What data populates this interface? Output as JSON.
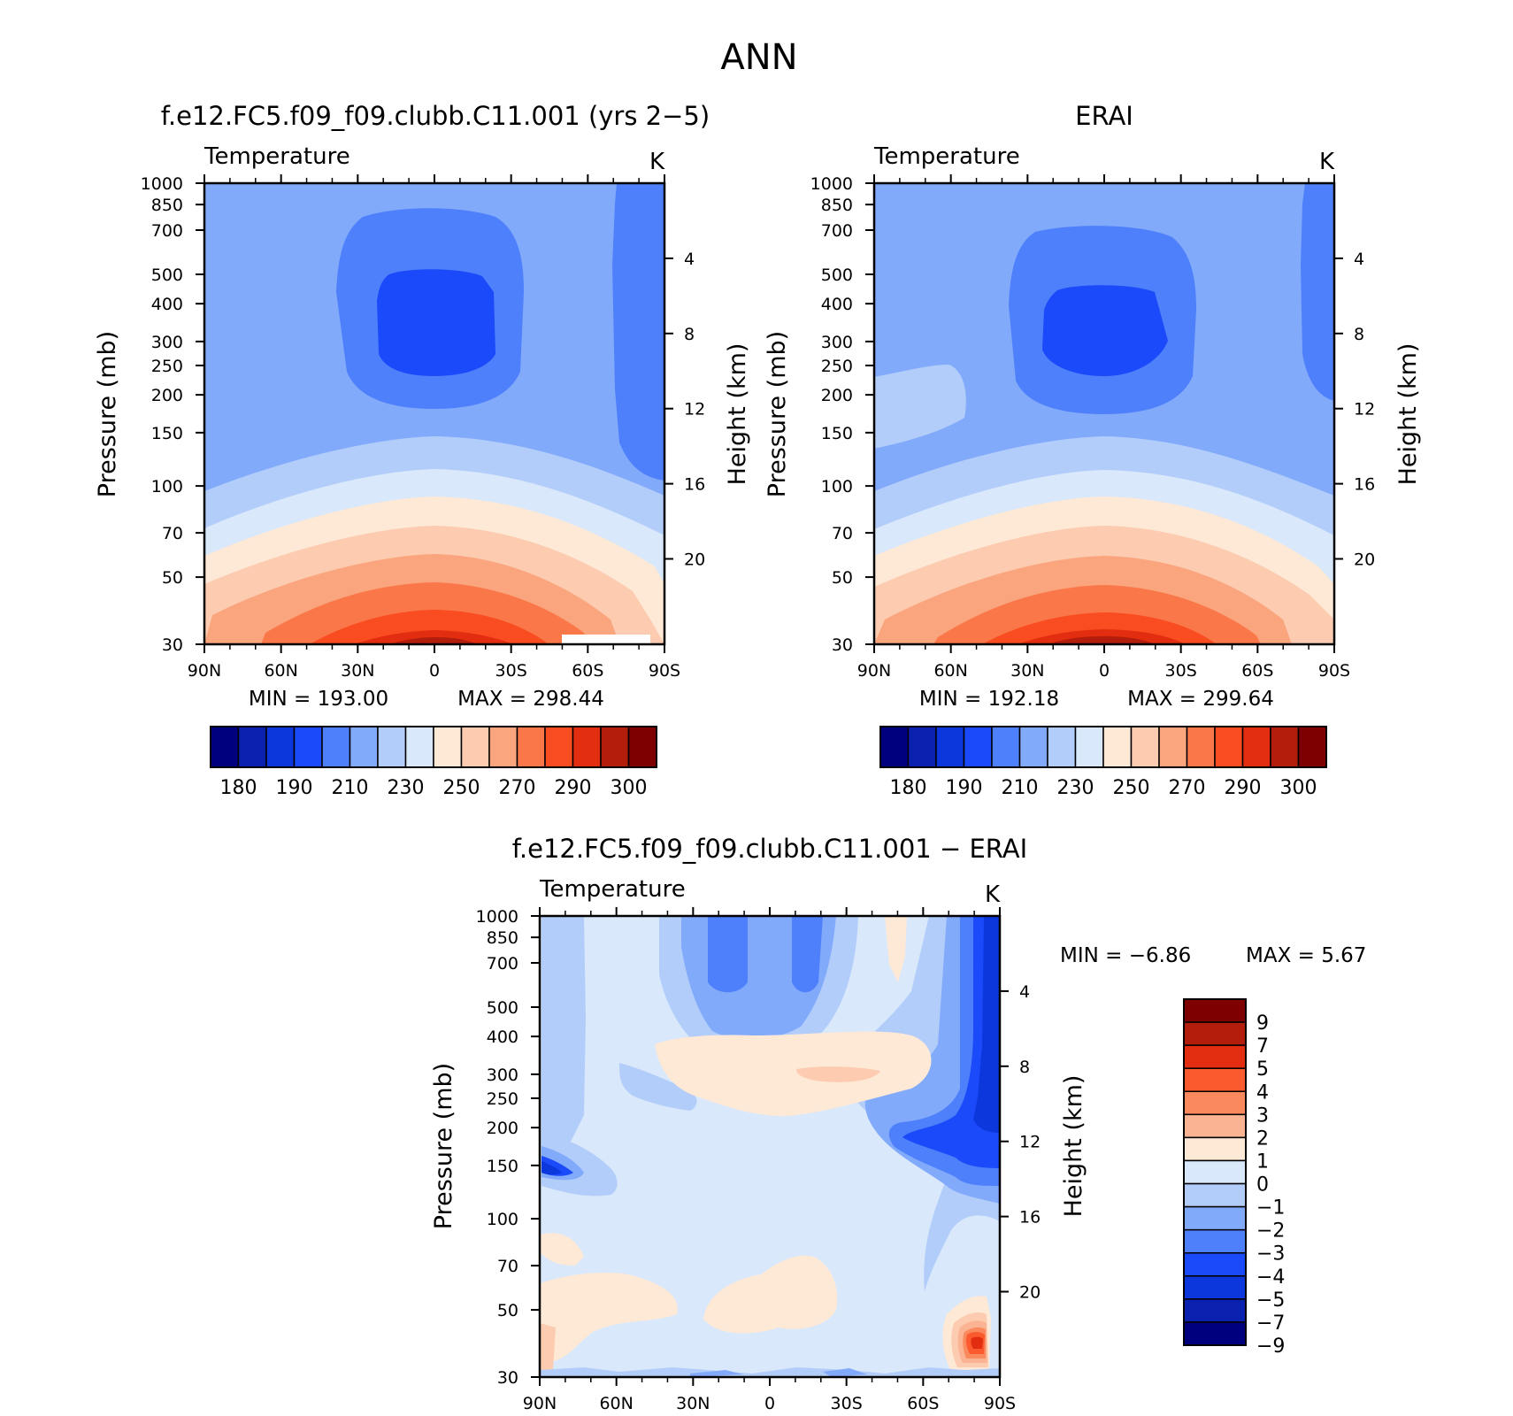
{
  "figure": {
    "title": "ANN"
  },
  "chart_data": [
    {
      "type": "heatmap",
      "id": "model",
      "title": "f.e12.FC5.f09_f09.clubb.C11.001 (yrs 2−5)",
      "variable_label": "Temperature",
      "units": "K",
      "xlabel": "",
      "ylabel": "Pressure (mb)",
      "ylabel_right": "Height (km)",
      "x_ticks": [
        "90N",
        "60N",
        "30N",
        "0",
        "30S",
        "60S",
        "90S"
      ],
      "y_ticks": [
        "30",
        "50",
        "70",
        "100",
        "150",
        "200",
        "250",
        "300",
        "400",
        "500",
        "700",
        "850",
        "1000"
      ],
      "y_ticks_right": [
        "20",
        "16",
        "12",
        "8",
        "4"
      ],
      "y_scale": "log",
      "ylim": [
        1000,
        30
      ],
      "xlim": [
        "90N",
        "90S"
      ],
      "min_text": "MIN = 193.00",
      "max_text": "MAX = 298.44",
      "min": 193.0,
      "max": 298.44,
      "colorbar_orientation": "horizontal",
      "colorbar_labels": [
        "180",
        "190",
        "210",
        "230",
        "250",
        "270",
        "290",
        "300"
      ],
      "colorbar_levels": [
        180,
        190,
        200,
        210,
        220,
        230,
        240,
        250,
        260,
        270,
        280,
        290,
        295,
        300
      ],
      "colorbar_colors": [
        "#00007f",
        "#0a21b0",
        "#0b37dd",
        "#1a4af9",
        "#4f80fb",
        "#82aafb",
        "#b3cdfa",
        "#d9e8fb",
        "#fde9d6",
        "#fccbb0",
        "#faa57d",
        "#fa774a",
        "#f94c20",
        "#e22d10",
        "#b31e0c",
        "#7e0000"
      ]
    },
    {
      "type": "heatmap",
      "id": "obs",
      "title": "ERAI",
      "variable_label": "Temperature",
      "units": "K",
      "xlabel": "",
      "ylabel": "Pressure (mb)",
      "ylabel_right": "Height (km)",
      "x_ticks": [
        "90N",
        "60N",
        "30N",
        "0",
        "30S",
        "60S",
        "90S"
      ],
      "y_ticks": [
        "30",
        "50",
        "70",
        "100",
        "150",
        "200",
        "250",
        "300",
        "400",
        "500",
        "700",
        "850",
        "1000"
      ],
      "y_ticks_right": [
        "20",
        "16",
        "12",
        "8",
        "4"
      ],
      "y_scale": "log",
      "ylim": [
        1000,
        30
      ],
      "xlim": [
        "90N",
        "90S"
      ],
      "min_text": "MIN = 192.18",
      "max_text": "MAX = 299.64",
      "min": 192.18,
      "max": 299.64,
      "colorbar_orientation": "horizontal",
      "colorbar_labels": [
        "180",
        "190",
        "210",
        "230",
        "250",
        "270",
        "290",
        "300"
      ],
      "colorbar_levels": [
        180,
        190,
        200,
        210,
        220,
        230,
        240,
        250,
        260,
        270,
        280,
        290,
        295,
        300
      ],
      "colorbar_colors": [
        "#00007f",
        "#0a21b0",
        "#0b37dd",
        "#1a4af9",
        "#4f80fb",
        "#82aafb",
        "#b3cdfa",
        "#d9e8fb",
        "#fde9d6",
        "#fccbb0",
        "#faa57d",
        "#fa774a",
        "#f94c20",
        "#e22d10",
        "#b31e0c",
        "#7e0000"
      ]
    },
    {
      "type": "heatmap",
      "id": "diff",
      "title": "f.e12.FC5.f09_f09.clubb.C11.001 − ERAI",
      "variable_label": "Temperature",
      "units": "K",
      "xlabel": "",
      "ylabel": "Pressure (mb)",
      "ylabel_right": "Height (km)",
      "x_ticks": [
        "90N",
        "60N",
        "30N",
        "0",
        "30S",
        "60S",
        "90S"
      ],
      "y_ticks": [
        "30",
        "50",
        "70",
        "100",
        "150",
        "200",
        "250",
        "300",
        "400",
        "500",
        "700",
        "850",
        "1000"
      ],
      "y_ticks_right": [
        "20",
        "16",
        "12",
        "8",
        "4"
      ],
      "y_scale": "log",
      "ylim": [
        1000,
        30
      ],
      "xlim": [
        "90N",
        "90S"
      ],
      "min_text": "MIN =   −6.86",
      "max_text": "MAX =     5.67",
      "min": -6.86,
      "max": 5.67,
      "colorbar_orientation": "vertical",
      "colorbar_labels": [
        "9",
        "7",
        "5",
        "4",
        "3",
        "2",
        "1",
        "0",
        "−1",
        "−2",
        "−3",
        "−4",
        "−5",
        "−7",
        "−9"
      ],
      "colorbar_levels": [
        9,
        7,
        5,
        4,
        3,
        2,
        1,
        0,
        -1,
        -2,
        -3,
        -4,
        -5,
        -7,
        -9
      ],
      "colorbar_colors": [
        "#7e0000",
        "#b31e0c",
        "#e22d10",
        "#fa5a2e",
        "#fa8a5e",
        "#fab494",
        "#fde9d6",
        "#d9e8fb",
        "#b3cdfa",
        "#82aafb",
        "#4f80fb",
        "#1a4af9",
        "#0b37dd",
        "#0a21b0",
        "#00007f"
      ]
    }
  ]
}
